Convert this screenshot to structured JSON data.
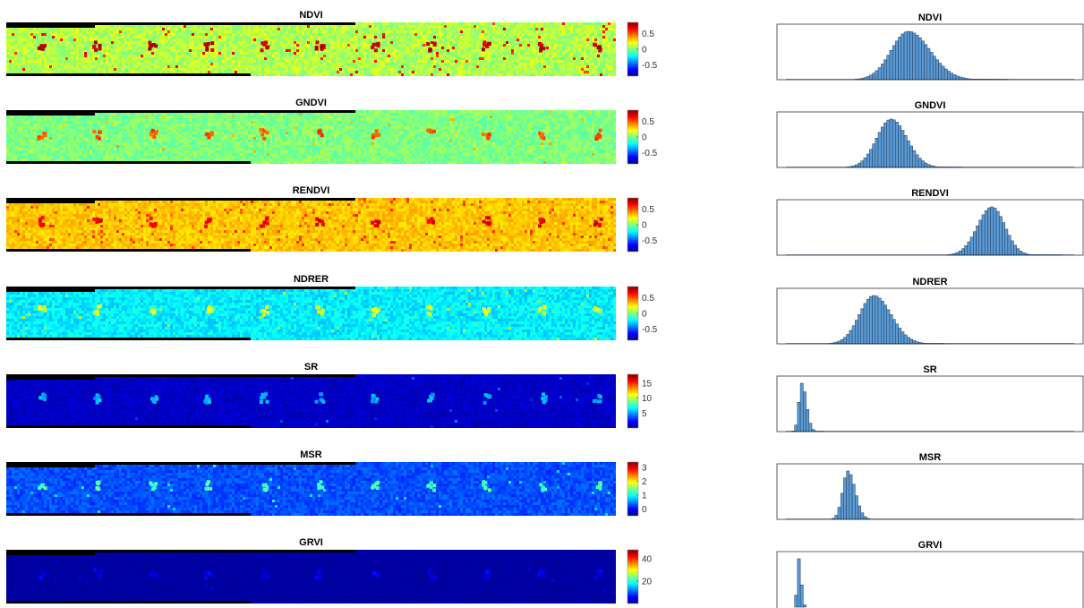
{
  "figure": {
    "colors": {
      "colormap": [
        "#00008f",
        "#0000ff",
        "#0080ff",
        "#00ffff",
        "#80ff80",
        "#ffff00",
        "#ff8000",
        "#ff0000",
        "#800000"
      ],
      "hist_fill": "#5b9bd5",
      "hist_edge": "#1f3550",
      "field_background": "#000000"
    }
  },
  "chart_data": [
    {
      "type": "heatmap",
      "title": "NDVI",
      "colorbar_ticks": [
        "0.5",
        "0",
        "-0.5"
      ],
      "colorbar_values": [
        0.5,
        0,
        -0.5
      ],
      "colorbar_range": [
        -0.85,
        0.85
      ],
      "base_level": 0.55,
      "spot_level": 0.93,
      "noise": 0.06,
      "speckle_level": 0.85,
      "speckle_rate": 0.03
    },
    {
      "type": "heatmap",
      "title": "GNDVI",
      "colorbar_ticks": [
        "0.5",
        "0",
        "-0.5"
      ],
      "colorbar_values": [
        0.5,
        0,
        -0.5
      ],
      "colorbar_range": [
        -0.85,
        0.85
      ],
      "base_level": 0.5,
      "spot_level": 0.8,
      "noise": 0.05,
      "speckle_level": 0.68,
      "speckle_rate": 0.01
    },
    {
      "type": "heatmap",
      "title": "RENDVI",
      "colorbar_ticks": [
        "0.5",
        "0",
        "-0.5"
      ],
      "colorbar_values": [
        0.5,
        0,
        -0.5
      ],
      "colorbar_range": [
        -0.85,
        0.85
      ],
      "base_level": 0.68,
      "spot_level": 0.9,
      "noise": 0.04,
      "speckle_level": 0.8,
      "speckle_rate": 0.05
    },
    {
      "type": "heatmap",
      "title": "NDRER",
      "colorbar_ticks": [
        "0.5",
        "0",
        "-0.5"
      ],
      "colorbar_values": [
        0.5,
        0,
        -0.5
      ],
      "colorbar_range": [
        -0.85,
        0.85
      ],
      "base_level": 0.36,
      "spot_level": 0.6,
      "noise": 0.05,
      "speckle_level": 0.55,
      "speckle_rate": 0.01
    },
    {
      "type": "heatmap",
      "title": "SR",
      "colorbar_ticks": [
        "15",
        "10",
        "5"
      ],
      "colorbar_values": [
        15,
        10,
        5
      ],
      "colorbar_range": [
        0,
        18
      ],
      "base_level": 0.06,
      "spot_level": 0.3,
      "noise": 0.03,
      "speckle_level": 0.2,
      "speckle_rate": 0.005
    },
    {
      "type": "heatmap",
      "title": "MSR",
      "colorbar_ticks": [
        "3",
        "2",
        "1",
        "0"
      ],
      "colorbar_values": [
        3,
        2,
        1,
        0
      ],
      "colorbar_range": [
        -0.5,
        3.4
      ],
      "base_level": 0.2,
      "spot_level": 0.45,
      "noise": 0.04,
      "speckle_level": 0.35,
      "speckle_rate": 0.01
    },
    {
      "type": "heatmap",
      "title": "GRVI",
      "colorbar_ticks": [
        "40",
        "20"
      ],
      "colorbar_values": [
        40,
        20
      ],
      "colorbar_range": [
        0,
        48
      ],
      "base_level": 0.02,
      "spot_level": 0.1,
      "noise": 0.01,
      "speckle_level": 0.08,
      "speckle_rate": 0.003
    },
    {
      "type": "bar",
      "title": "NDVI",
      "bins": 100,
      "peak_bin": 42,
      "spread_left": 6,
      "spread_right": 7.5,
      "tail": 0.03
    },
    {
      "type": "bar",
      "title": "GNDVI",
      "bins": 100,
      "peak_bin": 36,
      "spread_left": 5,
      "spread_right": 5.5,
      "tail": 0.02
    },
    {
      "type": "bar",
      "title": "RENDVI",
      "bins": 100,
      "peak_bin": 71,
      "spread_left": 5,
      "spread_right": 4.5,
      "tail": 0.02
    },
    {
      "type": "bar",
      "title": "NDRER",
      "bins": 100,
      "peak_bin": 30,
      "spread_left": 5,
      "spread_right": 6,
      "tail": 0.02
    },
    {
      "type": "bar",
      "title": "SR",
      "bins": 100,
      "peak_bin": 5,
      "spread_left": 1,
      "spread_right": 1.6,
      "tail": 0.01
    },
    {
      "type": "bar",
      "title": "MSR",
      "bins": 100,
      "peak_bin": 21,
      "spread_left": 1.8,
      "spread_right": 2.5,
      "tail": 0.01
    },
    {
      "type": "bar",
      "title": "GRVI",
      "bins": 100,
      "peak_bin": 4,
      "spread_left": 0.6,
      "spread_right": 0.8,
      "tail": 0.0
    }
  ]
}
